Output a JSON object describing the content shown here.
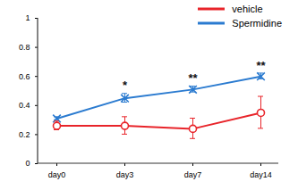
{
  "chart_data": {
    "type": "line",
    "categories": [
      "day0",
      "day3",
      "day7",
      "day14"
    ],
    "series": [
      {
        "name": "vehicle",
        "color": "#e8242a",
        "marker": "circle",
        "values": [
          0.26,
          0.26,
          0.24,
          0.35
        ],
        "errors": [
          0.03,
          0.06,
          0.07,
          0.11
        ]
      },
      {
        "name": "Spermidine",
        "color": "#2b7bd0",
        "marker": "times",
        "values": [
          0.31,
          0.45,
          0.51,
          0.6
        ],
        "errors": [
          0.01,
          0.03,
          0.02,
          0.02
        ]
      }
    ],
    "ylim": [
      0,
      1
    ],
    "yticks": [
      0,
      0.2,
      0.4,
      0.6,
      0.8,
      1
    ],
    "annotations": [
      {
        "x": "day3",
        "text": "*"
      },
      {
        "x": "day7",
        "text": "**"
      },
      {
        "x": "day14",
        "text": "**"
      }
    ],
    "legend": "top-right",
    "grid": false
  }
}
